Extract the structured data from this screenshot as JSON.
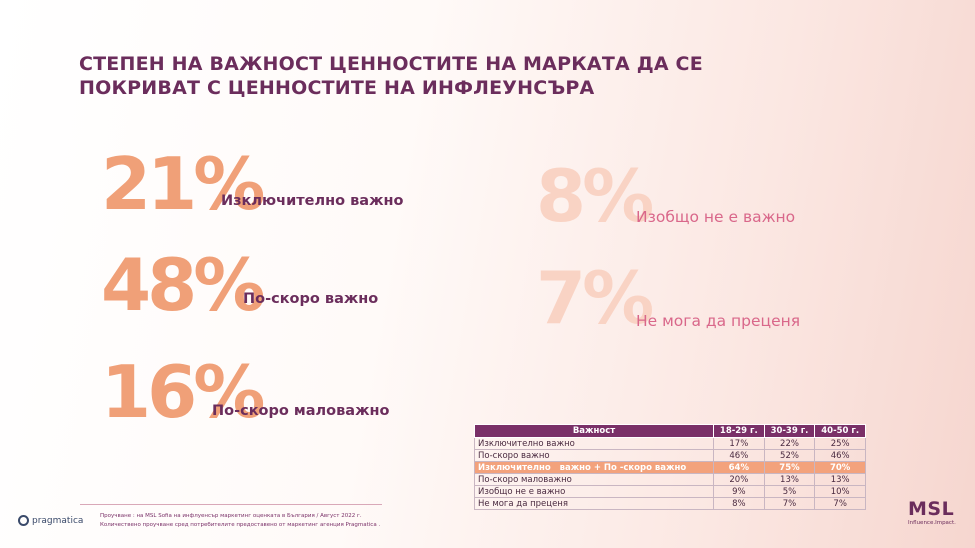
{
  "title": {
    "line1": "СТЕПЕН НА ВАЖНОСТ ЦЕННОСТИТЕ НА МАРКАТА ДА СЕ",
    "line2": "ПОКРИВАТ С ЦЕННОСТИТЕ НА ИНФЛЕУНСЪРА"
  },
  "stats": {
    "s1": {
      "value": "21%",
      "label": "Изключително важно"
    },
    "s2": {
      "value": "48%",
      "label": "По-скоро важно"
    },
    "s3": {
      "value": "16%",
      "label": "По-скоро маловажно"
    },
    "s4": {
      "value": "8%",
      "label": "Изобщо не е важно"
    },
    "s5": {
      "value": "7%",
      "label": "Не мога да преценя"
    }
  },
  "table": {
    "headers": [
      "Важност",
      "18-29 г.",
      "30-39 г.",
      "40-50 г."
    ],
    "rows": [
      [
        "Изключително важно",
        "17%",
        "22%",
        "25%"
      ],
      [
        "По-скоро важно",
        "46%",
        "52%",
        "46%"
      ],
      [
        "Изключително   важно + По -скоро важно",
        "64%",
        "75%",
        "70%"
      ],
      [
        "По-скоро маловажно",
        "20%",
        "13%",
        "13%"
      ],
      [
        "Изобщо не е важно",
        "9%",
        "5%",
        "10%"
      ],
      [
        "Не мога да преценя",
        "8%",
        "7%",
        "7%"
      ]
    ]
  },
  "footnote": {
    "line1": "Проучване : на MSL Sofia на инфлуенсър маркетинг оценката в България / Август 2022 г.",
    "line2": "Количествено проучване  сред потребителите предоставено от маркетинг агенция Pragmatica ."
  },
  "logos": {
    "pragmatica": "pragmatica",
    "msl": "MSL",
    "msl_tagline": "Influence.Impact."
  },
  "colors": {
    "accent_purple": "#6b2d5c",
    "accent_orange": "#f0a078",
    "faded_orange": "#f9d3c4",
    "rose": "#d9678a"
  }
}
